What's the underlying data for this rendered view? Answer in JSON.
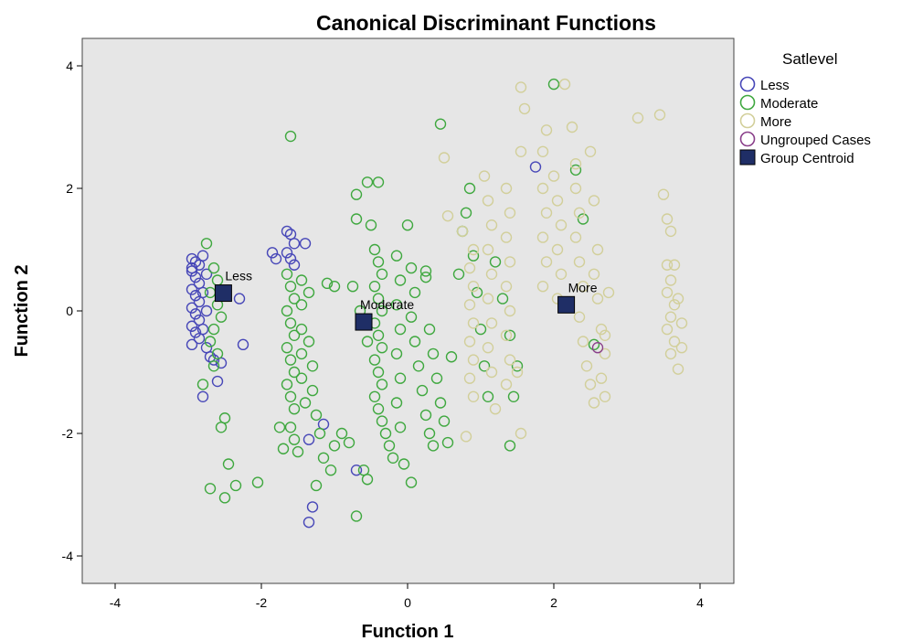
{
  "chart_data": {
    "type": "scatter",
    "title": "Canonical Discriminant Functions",
    "xlabel": "Function 1",
    "ylabel": "Function 2",
    "xlim": [
      -4.5,
      4.2
    ],
    "ylim": [
      -4.5,
      4.0
    ],
    "xticks": [
      -4,
      -2,
      0,
      2,
      4
    ],
    "yticks": [
      -4,
      -2,
      0,
      2,
      4
    ],
    "xtick_labels": [
      "-4",
      "-2",
      "0",
      "2",
      "4"
    ],
    "ytick_labels": [
      "-4",
      "-2",
      "0",
      "2",
      "4"
    ],
    "grid": false,
    "plot_background": "#e6e6e6",
    "legend": {
      "title": "Satlevel",
      "placement": "outside-right-top",
      "entries": [
        "Less",
        "Moderate",
        "More",
        "Ungrouped Cases",
        "Group Centroid"
      ]
    },
    "series": [
      {
        "name": "Less",
        "color": "#4747b8",
        "marker": "open-circle",
        "points": [
          [
            -2.95,
            0.85
          ],
          [
            -2.9,
            0.8
          ],
          [
            -2.85,
            0.75
          ],
          [
            -2.95,
            0.65
          ],
          [
            -2.9,
            0.55
          ],
          [
            -2.85,
            0.45
          ],
          [
            -2.95,
            0.35
          ],
          [
            -2.9,
            0.25
          ],
          [
            -2.85,
            0.15
          ],
          [
            -2.95,
            0.05
          ],
          [
            -2.9,
            -0.05
          ],
          [
            -2.85,
            -0.15
          ],
          [
            -2.95,
            -0.25
          ],
          [
            -2.9,
            -0.35
          ],
          [
            -2.85,
            -0.45
          ],
          [
            -2.95,
            -0.55
          ],
          [
            -2.8,
            0.9
          ],
          [
            -2.75,
            0.6
          ],
          [
            -2.8,
            0.3
          ],
          [
            -2.75,
            0.0
          ],
          [
            -2.8,
            -0.3
          ],
          [
            -2.75,
            -0.6
          ],
          [
            -2.7,
            -0.75
          ],
          [
            -2.65,
            -0.8
          ],
          [
            -2.55,
            -0.85
          ],
          [
            -2.6,
            -1.15
          ],
          [
            -2.8,
            -1.4
          ],
          [
            -2.3,
            0.2
          ],
          [
            -2.25,
            -0.55
          ],
          [
            -1.65,
            1.3
          ],
          [
            -1.6,
            1.25
          ],
          [
            -1.55,
            1.1
          ],
          [
            -1.65,
            0.95
          ],
          [
            -1.6,
            0.85
          ],
          [
            -1.55,
            0.75
          ],
          [
            -1.4,
            1.1
          ],
          [
            -1.35,
            -2.1
          ],
          [
            -1.15,
            -1.85
          ],
          [
            -1.3,
            -3.2
          ],
          [
            -1.35,
            -3.45
          ],
          [
            -0.7,
            -2.6
          ],
          [
            1.75,
            2.35
          ],
          [
            -1.85,
            0.95
          ],
          [
            -1.8,
            0.85
          ],
          [
            -2.95,
            0.7
          ]
        ]
      },
      {
        "name": "Moderate",
        "color": "#3fa83f",
        "marker": "open-circle",
        "points": [
          [
            -2.75,
            1.1
          ],
          [
            -2.65,
            0.7
          ],
          [
            -2.6,
            0.5
          ],
          [
            -2.7,
            0.3
          ],
          [
            -2.6,
            0.1
          ],
          [
            -2.55,
            -0.1
          ],
          [
            -2.65,
            -0.3
          ],
          [
            -2.7,
            -0.5
          ],
          [
            -2.6,
            -0.7
          ],
          [
            -2.65,
            -0.9
          ],
          [
            -2.8,
            -1.2
          ],
          [
            -2.5,
            -1.75
          ],
          [
            -2.55,
            -1.9
          ],
          [
            -2.45,
            -2.5
          ],
          [
            -2.35,
            -2.85
          ],
          [
            -2.05,
            -2.8
          ],
          [
            -2.7,
            -2.9
          ],
          [
            -2.5,
            -3.05
          ],
          [
            -1.65,
            0.6
          ],
          [
            -1.6,
            0.4
          ],
          [
            -1.55,
            0.2
          ],
          [
            -1.65,
            0.0
          ],
          [
            -1.6,
            -0.2
          ],
          [
            -1.55,
            -0.4
          ],
          [
            -1.65,
            -0.6
          ],
          [
            -1.6,
            -0.8
          ],
          [
            -1.55,
            -1.0
          ],
          [
            -1.65,
            -1.2
          ],
          [
            -1.6,
            -1.4
          ],
          [
            -1.55,
            -1.6
          ],
          [
            -1.6,
            -1.9
          ],
          [
            -1.55,
            -2.1
          ],
          [
            -1.5,
            -2.3
          ],
          [
            -1.45,
            0.5
          ],
          [
            -1.45,
            0.1
          ],
          [
            -1.45,
            -0.3
          ],
          [
            -1.45,
            -0.7
          ],
          [
            -1.45,
            -1.1
          ],
          [
            -1.4,
            -1.5
          ],
          [
            -1.35,
            0.3
          ],
          [
            -1.35,
            -0.5
          ],
          [
            -1.3,
            -0.9
          ],
          [
            -1.3,
            -1.3
          ],
          [
            -1.25,
            -1.7
          ],
          [
            -1.2,
            -2.0
          ],
          [
            -1.15,
            -2.4
          ],
          [
            -1.05,
            -2.6
          ],
          [
            -1.0,
            -2.2
          ],
          [
            -1.1,
            0.45
          ],
          [
            -1.0,
            0.4
          ],
          [
            -0.9,
            -2.0
          ],
          [
            -0.8,
            -2.15
          ],
          [
            -0.6,
            -2.6
          ],
          [
            -0.55,
            -2.75
          ],
          [
            -0.7,
            -3.35
          ],
          [
            -1.25,
            -2.85
          ],
          [
            -1.6,
            2.85
          ],
          [
            -1.75,
            -1.9
          ],
          [
            -1.7,
            -2.25
          ],
          [
            -0.7,
            1.9
          ],
          [
            -0.55,
            2.1
          ],
          [
            -0.4,
            2.1
          ],
          [
            -0.5,
            1.4
          ],
          [
            -0.7,
            1.5
          ],
          [
            0.0,
            1.4
          ],
          [
            -0.45,
            1.0
          ],
          [
            -0.4,
            0.8
          ],
          [
            -0.35,
            0.6
          ],
          [
            -0.45,
            0.4
          ],
          [
            -0.4,
            0.2
          ],
          [
            -0.35,
            0.0
          ],
          [
            -0.45,
            -0.2
          ],
          [
            -0.4,
            -0.4
          ],
          [
            -0.35,
            -0.6
          ],
          [
            -0.45,
            -0.8
          ],
          [
            -0.4,
            -1.0
          ],
          [
            -0.35,
            -1.2
          ],
          [
            -0.45,
            -1.4
          ],
          [
            -0.4,
            -1.6
          ],
          [
            -0.35,
            -1.8
          ],
          [
            -0.3,
            -2.0
          ],
          [
            -0.25,
            -2.2
          ],
          [
            -0.2,
            -2.4
          ],
          [
            -0.15,
            0.9
          ],
          [
            -0.1,
            0.5
          ],
          [
            -0.15,
            0.1
          ],
          [
            -0.1,
            -0.3
          ],
          [
            -0.15,
            -0.7
          ],
          [
            -0.1,
            -1.1
          ],
          [
            -0.15,
            -1.5
          ],
          [
            -0.1,
            -1.9
          ],
          [
            -0.05,
            -2.5
          ],
          [
            0.05,
            -2.8
          ],
          [
            0.05,
            0.7
          ],
          [
            0.1,
            0.3
          ],
          [
            0.05,
            -0.1
          ],
          [
            0.1,
            -0.5
          ],
          [
            0.15,
            -0.9
          ],
          [
            0.2,
            -1.3
          ],
          [
            0.25,
            -1.7
          ],
          [
            0.3,
            -2.0
          ],
          [
            0.35,
            -2.2
          ],
          [
            0.25,
            0.55
          ],
          [
            0.3,
            -0.3
          ],
          [
            0.35,
            -0.7
          ],
          [
            0.4,
            -1.1
          ],
          [
            0.45,
            -1.5
          ],
          [
            0.5,
            -1.8
          ],
          [
            0.55,
            -2.15
          ],
          [
            0.25,
            0.65
          ],
          [
            0.45,
            3.05
          ],
          [
            -0.75,
            0.4
          ],
          [
            -0.65,
            0.0
          ],
          [
            -0.55,
            -0.5
          ],
          [
            0.6,
            -0.75
          ],
          [
            0.7,
            0.6
          ],
          [
            0.75,
            1.3
          ],
          [
            0.8,
            1.6
          ],
          [
            0.85,
            2.0
          ],
          [
            0.9,
            0.9
          ],
          [
            0.95,
            0.3
          ],
          [
            1.0,
            -0.3
          ],
          [
            1.05,
            -0.9
          ],
          [
            1.1,
            -1.4
          ],
          [
            1.2,
            0.8
          ],
          [
            1.3,
            0.2
          ],
          [
            1.4,
            -0.4
          ],
          [
            1.5,
            -0.9
          ],
          [
            1.45,
            -1.4
          ],
          [
            1.4,
            -2.2
          ],
          [
            2.0,
            3.7
          ],
          [
            2.3,
            2.3
          ],
          [
            2.4,
            1.5
          ],
          [
            2.55,
            -0.55
          ]
        ]
      },
      {
        "name": "More",
        "color": "#d2cf9a",
        "marker": "open-circle",
        "points": [
          [
            0.5,
            2.5
          ],
          [
            0.55,
            1.55
          ],
          [
            0.75,
            1.3
          ],
          [
            0.9,
            1.0
          ],
          [
            0.85,
            0.7
          ],
          [
            0.9,
            0.4
          ],
          [
            0.85,
            0.1
          ],
          [
            0.9,
            -0.2
          ],
          [
            0.85,
            -0.5
          ],
          [
            0.9,
            -0.8
          ],
          [
            0.85,
            -1.1
          ],
          [
            0.9,
            -1.4
          ],
          [
            0.8,
            -2.05
          ],
          [
            1.05,
            2.2
          ],
          [
            1.1,
            1.8
          ],
          [
            1.15,
            1.4
          ],
          [
            1.1,
            1.0
          ],
          [
            1.15,
            0.6
          ],
          [
            1.1,
            0.2
          ],
          [
            1.15,
            -0.2
          ],
          [
            1.1,
            -0.6
          ],
          [
            1.15,
            -1.0
          ],
          [
            1.2,
            -1.6
          ],
          [
            1.35,
            2.0
          ],
          [
            1.4,
            1.6
          ],
          [
            1.35,
            1.2
          ],
          [
            1.4,
            0.8
          ],
          [
            1.35,
            0.4
          ],
          [
            1.4,
            0.0
          ],
          [
            1.35,
            -0.4
          ],
          [
            1.4,
            -0.8
          ],
          [
            1.35,
            -1.2
          ],
          [
            1.5,
            -1.0
          ],
          [
            1.55,
            -2.0
          ],
          [
            1.55,
            3.65
          ],
          [
            1.6,
            3.3
          ],
          [
            1.55,
            2.6
          ],
          [
            1.85,
            2.6
          ],
          [
            1.9,
            2.95
          ],
          [
            1.85,
            2.0
          ],
          [
            1.9,
            1.6
          ],
          [
            1.85,
            1.2
          ],
          [
            1.9,
            0.8
          ],
          [
            1.85,
            0.4
          ],
          [
            2.0,
            2.2
          ],
          [
            2.05,
            1.8
          ],
          [
            2.1,
            1.4
          ],
          [
            2.05,
            1.0
          ],
          [
            2.1,
            0.6
          ],
          [
            2.05,
            0.2
          ],
          [
            2.15,
            3.7
          ],
          [
            2.25,
            3.0
          ],
          [
            2.3,
            2.4
          ],
          [
            2.3,
            2.0
          ],
          [
            2.35,
            1.6
          ],
          [
            2.3,
            1.2
          ],
          [
            2.35,
            0.8
          ],
          [
            2.4,
            0.4
          ],
          [
            2.35,
            -0.1
          ],
          [
            2.4,
            -0.5
          ],
          [
            2.45,
            -0.9
          ],
          [
            2.5,
            -1.2
          ],
          [
            2.55,
            -1.5
          ],
          [
            2.5,
            2.6
          ],
          [
            2.55,
            1.8
          ],
          [
            2.6,
            1.0
          ],
          [
            2.55,
            0.6
          ],
          [
            2.6,
            0.2
          ],
          [
            2.65,
            -0.3
          ],
          [
            2.7,
            -0.7
          ],
          [
            2.65,
            -1.1
          ],
          [
            2.7,
            -1.4
          ],
          [
            2.7,
            -0.4
          ],
          [
            2.75,
            0.3
          ],
          [
            3.15,
            3.15
          ],
          [
            3.45,
            3.2
          ],
          [
            3.5,
            1.9
          ],
          [
            3.55,
            1.5
          ],
          [
            3.6,
            1.3
          ],
          [
            3.55,
            0.75
          ],
          [
            3.65,
            0.75
          ],
          [
            3.6,
            0.5
          ],
          [
            3.55,
            0.3
          ],
          [
            3.65,
            0.1
          ],
          [
            3.6,
            -0.1
          ],
          [
            3.55,
            -0.3
          ],
          [
            3.65,
            -0.5
          ],
          [
            3.6,
            -0.7
          ],
          [
            3.7,
            -0.95
          ],
          [
            3.75,
            -0.6
          ],
          [
            3.75,
            -0.2
          ],
          [
            3.7,
            0.2
          ]
        ]
      },
      {
        "name": "Ungrouped Cases",
        "color": "#8a3f8a",
        "marker": "open-circle",
        "points": [
          [
            2.6,
            -0.6
          ]
        ]
      }
    ],
    "centroids": [
      {
        "name": "Less",
        "x": -2.52,
        "y": 0.29
      },
      {
        "name": "Moderate",
        "x": -0.6,
        "y": -0.18
      },
      {
        "name": "More",
        "x": 2.17,
        "y": 0.1
      }
    ],
    "centroid_color": "#1f2e66"
  }
}
